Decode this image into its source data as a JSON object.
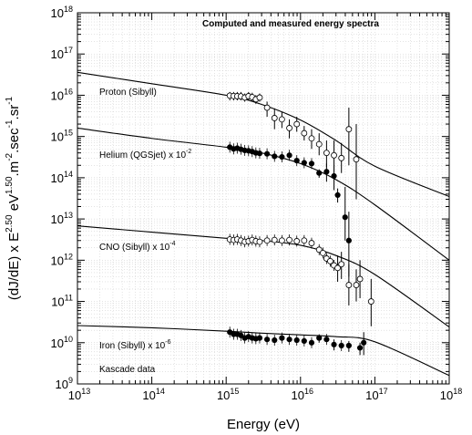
{
  "chart_data": {
    "type": "scatter",
    "title": "Computed and measured energy spectra",
    "xlabel": "Energy (eV)",
    "ylabel": {
      "prefix": "(dJ/dE) x E",
      "exp1": "2.50",
      "mid1": " eV",
      "exp2": "1.50",
      "mid2": ".m",
      "exp3": "-2",
      "mid3": ".sec",
      "exp4": "-1",
      "mid4": ".sr",
      "exp5": "-1"
    },
    "x_scale": "log",
    "y_scale": "log",
    "xlim": [
      10000000000000.0,
      1e+18
    ],
    "ylim": [
      1000000000.0,
      1e+18
    ],
    "grid": true,
    "x_ticks": [
      {
        "base": "10",
        "exp": "13"
      },
      {
        "base": "10",
        "exp": "14"
      },
      {
        "base": "10",
        "exp": "15"
      },
      {
        "base": "10",
        "exp": "16"
      },
      {
        "base": "10",
        "exp": "17"
      },
      {
        "base": "10",
        "exp": "18"
      }
    ],
    "y_ticks": [
      {
        "base": "10",
        "exp": "9"
      },
      {
        "base": "10",
        "exp": "10"
      },
      {
        "base": "10",
        "exp": "11"
      },
      {
        "base": "10",
        "exp": "12"
      },
      {
        "base": "10",
        "exp": "13"
      },
      {
        "base": "10",
        "exp": "14"
      },
      {
        "base": "10",
        "exp": "15"
      },
      {
        "base": "10",
        "exp": "16"
      },
      {
        "base": "10",
        "exp": "17"
      },
      {
        "base": "10",
        "exp": "18"
      }
    ],
    "annotations": [
      {
        "text": "Proton (Sibyll)",
        "sup": ""
      },
      {
        "text": "Helium (QGSjet)  x 10",
        "sup": "-2"
      },
      {
        "text": "CNO (Sibyll)  x 10",
        "sup": "-4"
      },
      {
        "text": "Iron (Sibyll)  x 10",
        "sup": "-6"
      },
      {
        "text": "Kascade data",
        "sup": ""
      }
    ],
    "curves": [
      {
        "x": [
          10000000000000.0,
          100000000000000.0,
          1000000000000000.0,
          3000000000000000.0,
          1e+16,
          3e+16,
          1e+17,
          1e+18
        ],
        "y": [
          3.6e+16,
          1.9e+16,
          1e+16,
          6000000000000000.0,
          2500000000000000.0,
          800000000000000.0,
          190000000000000.0,
          35000000000000.0
        ]
      },
      {
        "x": [
          10000000000000.0,
          100000000000000.0,
          1000000000000000.0,
          3000000000000000.0,
          1e+16,
          3e+16,
          1e+17,
          1e+18
        ],
        "y": [
          1600000000000000.0,
          900000000000000.0,
          550000000000000.0,
          400000000000000.0,
          220000000000000.0,
          90000000000000.0,
          22000000000000.0,
          1000000000000.0
        ]
      },
      {
        "x": [
          10000000000000.0,
          100000000000000.0,
          1000000000000000.0,
          3000000000000000.0,
          1e+16,
          3e+16,
          1e+17,
          1e+18
        ],
        "y": [
          6800000000000.0,
          4800000000000.0,
          3400000000000.0,
          3000000000000.0,
          2300000000000.0,
          1300000000000.0,
          450000000000.0,
          24000000000.0
        ]
      },
      {
        "x": [
          10000000000000.0,
          100000000000000.0,
          1000000000000000.0,
          3000000000000000.0,
          1e+16,
          3e+16,
          1e+17,
          1e+18
        ],
        "y": [
          26000000000.0,
          23000000000.0,
          19000000000.0,
          17000000000.0,
          15500000000.0,
          14000000000.0,
          10500000000.0,
          1600000000.0
        ]
      }
    ],
    "series": [
      {
        "marker": "open",
        "points": [
          {
            "x": 1120000000000000.0,
            "y": 9800000000000000.0,
            "lo": 7500000000000000.0,
            "hi": 1.2e+16
          },
          {
            "x": 1260000000000000.0,
            "y": 9600000000000000.0,
            "lo": 7500000000000000.0,
            "hi": 1.2e+16
          },
          {
            "x": 1410000000000000.0,
            "y": 9500000000000000.0,
            "lo": 7500000000000000.0,
            "hi": 1.2e+16
          },
          {
            "x": 1580000000000000.0,
            "y": 9400000000000000.0,
            "lo": 7500000000000000.0,
            "hi": 1.2e+16
          },
          {
            "x": 1780000000000000.0,
            "y": 8800000000000000.0,
            "lo": 7000000000000000.0,
            "hi": 1.1e+16
          },
          {
            "x": 2000000000000000.0,
            "y": 9500000000000000.0,
            "lo": 7500000000000000.0,
            "hi": 1.2e+16
          },
          {
            "x": 2240000000000000.0,
            "y": 9000000000000000.0,
            "lo": 7000000000000000.0,
            "hi": 1.15e+16
          },
          {
            "x": 2510000000000000.0,
            "y": 8000000000000000.0,
            "lo": 6200000000000000.0,
            "hi": 1e+16
          },
          {
            "x": 2820000000000000.0,
            "y": 8800000000000000.0,
            "lo": 7000000000000000.0,
            "hi": 1.1e+16
          },
          {
            "x": 3550000000000000.0,
            "y": 5000000000000000.0,
            "lo": 3000000000000000.0,
            "hi": 7000000000000000.0
          },
          {
            "x": 4470000000000000.0,
            "y": 2800000000000000.0,
            "lo": 1500000000000000.0,
            "hi": 4800000000000000.0
          },
          {
            "x": 5620000000000000.0,
            "y": 2600000000000000.0,
            "lo": 1600000000000000.0,
            "hi": 4000000000000000.0
          },
          {
            "x": 7080000000000000.0,
            "y": 1600000000000000.0,
            "lo": 900000000000000.0,
            "hi": 2600000000000000.0
          },
          {
            "x": 8910000000000000.0,
            "y": 2000000000000000.0,
            "lo": 1300000000000000.0,
            "hi": 3000000000000000.0
          },
          {
            "x": 1.12e+16,
            "y": 1200000000000000.0,
            "lo": 800000000000000.0,
            "hi": 1800000000000000.0
          },
          {
            "x": 1.41e+16,
            "y": 900000000000000.0,
            "lo": 500000000000000.0,
            "hi": 1500000000000000.0
          },
          {
            "x": 1.78e+16,
            "y": 650000000000000.0,
            "lo": 350000000000000.0,
            "hi": 1200000000000000.0
          },
          {
            "x": 2.24e+16,
            "y": 400000000000000.0,
            "lo": 180000000000000.0,
            "hi": 800000000000000.0
          },
          {
            "x": 2.82e+16,
            "y": 350000000000000.0,
            "lo": 140000000000000.0,
            "hi": 800000000000000.0
          },
          {
            "x": 3.55e+16,
            "y": 300000000000000.0,
            "lo": 130000000000000.0,
            "hi": 700000000000000.0
          },
          {
            "x": 4.47e+16,
            "y": 1500000000000000.0,
            "lo": 200000000000000.0,
            "hi": 5000000000000000.0
          },
          {
            "x": 5.62e+16,
            "y": 280000000000000.0,
            "lo": 30000000000000.0,
            "hi": 2000000000000000.0
          }
        ]
      },
      {
        "marker": "filled",
        "points": [
          {
            "x": 1120000000000000.0,
            "y": 550000000000000.0
          },
          {
            "x": 1260000000000000.0,
            "y": 500000000000000.0
          },
          {
            "x": 1410000000000000.0,
            "y": 520000000000000.0
          },
          {
            "x": 1580000000000000.0,
            "y": 490000000000000.0
          },
          {
            "x": 1780000000000000.0,
            "y": 460000000000000.0
          },
          {
            "x": 2000000000000000.0,
            "y": 450000000000000.0
          },
          {
            "x": 2240000000000000.0,
            "y": 430000000000000.0
          },
          {
            "x": 2510000000000000.0,
            "y": 400000000000000.0
          },
          {
            "x": 2820000000000000.0,
            "y": 390000000000000.0
          },
          {
            "x": 3550000000000000.0,
            "y": 380000000000000.0
          },
          {
            "x": 4470000000000000.0,
            "y": 330000000000000.0
          },
          {
            "x": 5620000000000000.0,
            "y": 320000000000000.0
          },
          {
            "x": 7080000000000000.0,
            "y": 350000000000000.0
          },
          {
            "x": 8910000000000000.0,
            "y": 260000000000000.0
          },
          {
            "x": 1.12e+16,
            "y": 230000000000000.0
          },
          {
            "x": 1.41e+16,
            "y": 220000000000000.0
          },
          {
            "x": 1.78e+16,
            "y": 130000000000000.0,
            "lo": 100000000000000.0,
            "hi": 160000000000000.0
          },
          {
            "x": 2.24e+16,
            "y": 140000000000000.0,
            "lo": 80000000000000.0,
            "hi": 220000000000000.0
          },
          {
            "x": 2.82e+16,
            "y": 110000000000000.0,
            "lo": 50000000000000.0,
            "hi": 200000000000000.0
          },
          {
            "x": 3.16e+16,
            "y": 38000000000000.0,
            "lo": 25000000000000.0,
            "hi": 55000000000000.0
          },
          {
            "x": 3.98e+16,
            "y": 11000000000000.0,
            "lo": 3000000000000.0,
            "hi": 60000000000000.0
          },
          {
            "x": 4.47e+16,
            "y": 3000000000000.0,
            "lo": 400000000000.0,
            "hi": 15000000000000.0
          }
        ]
      },
      {
        "marker": "open",
        "points": [
          {
            "x": 1120000000000000.0,
            "y": 3200000000000.0
          },
          {
            "x": 1260000000000000.0,
            "y": 3100000000000.0
          },
          {
            "x": 1410000000000000.0,
            "y": 3200000000000.0
          },
          {
            "x": 1580000000000000.0,
            "y": 3000000000000.0
          },
          {
            "x": 1780000000000000.0,
            "y": 2800000000000.0
          },
          {
            "x": 2000000000000000.0,
            "y": 2900000000000.0
          },
          {
            "x": 2240000000000000.0,
            "y": 3100000000000.0
          },
          {
            "x": 2510000000000000.0,
            "y": 2900000000000.0
          },
          {
            "x": 2820000000000000.0,
            "y": 2800000000000.0
          },
          {
            "x": 3550000000000000.0,
            "y": 3000000000000.0
          },
          {
            "x": 4470000000000000.0,
            "y": 3100000000000.0
          },
          {
            "x": 5620000000000000.0,
            "y": 3000000000000.0
          },
          {
            "x": 7080000000000000.0,
            "y": 3100000000000.0
          },
          {
            "x": 8910000000000000.0,
            "y": 2900000000000.0
          },
          {
            "x": 1.12e+16,
            "y": 3000000000000.0
          },
          {
            "x": 1.41e+16,
            "y": 2600000000000.0
          },
          {
            "x": 1.78e+16,
            "y": 1800000000000.0
          },
          {
            "x": 2e+16,
            "y": 1500000000000.0
          },
          {
            "x": 2.24e+16,
            "y": 1100000000000.0
          },
          {
            "x": 2.51e+16,
            "y": 950000000000.0
          },
          {
            "x": 2.82e+16,
            "y": 750000000000.0
          },
          {
            "x": 3.16e+16,
            "y": 650000000000.0,
            "lo": 300000000000.0,
            "hi": 1300000000000.0
          },
          {
            "x": 3.55e+16,
            "y": 800000000000.0,
            "lo": 350000000000.0,
            "hi": 1600000000000.0
          },
          {
            "x": 4.47e+16,
            "y": 250000000000.0,
            "lo": 80000000000.0,
            "hi": 800000000000.0
          },
          {
            "x": 5.62e+16,
            "y": 250000000000.0,
            "lo": 100000000000.0,
            "hi": 600000000000.0
          },
          {
            "x": 6.31e+16,
            "y": 350000000000.0,
            "lo": 120000000000.0,
            "hi": 1000000000000.0
          },
          {
            "x": 8.91e+16,
            "y": 100000000000.0,
            "lo": 25000000000.0,
            "hi": 350000000000.0
          }
        ]
      },
      {
        "marker": "filled",
        "points": [
          {
            "x": 1120000000000000.0,
            "y": 18000000000.0
          },
          {
            "x": 1260000000000000.0,
            "y": 16000000000.0
          },
          {
            "x": 1410000000000000.0,
            "y": 16000000000.0
          },
          {
            "x": 1580000000000000.0,
            "y": 15000000000.0
          },
          {
            "x": 1780000000000000.0,
            "y": 13000000000.0
          },
          {
            "x": 2000000000000000.0,
            "y": 14000000000.0
          },
          {
            "x": 2240000000000000.0,
            "y": 13000000000.0
          },
          {
            "x": 2510000000000000.0,
            "y": 12500000000.0
          },
          {
            "x": 2820000000000000.0,
            "y": 13000000000.0
          },
          {
            "x": 3550000000000000.0,
            "y": 12000000000.0
          },
          {
            "x": 4470000000000000.0,
            "y": 11500000000.0
          },
          {
            "x": 5620000000000000.0,
            "y": 13000000000.0
          },
          {
            "x": 7080000000000000.0,
            "y": 12000000000.0
          },
          {
            "x": 8910000000000000.0,
            "y": 11500000000.0
          },
          {
            "x": 1.12e+16,
            "y": 11000000000.0
          },
          {
            "x": 1.41e+16,
            "y": 10000000000.0
          },
          {
            "x": 1.78e+16,
            "y": 13000000000.0,
            "lo": 10000000000.0,
            "hi": 16000000000.0
          },
          {
            "x": 2.24e+16,
            "y": 12000000000.0
          },
          {
            "x": 2.82e+16,
            "y": 9000000000.0,
            "lo": 6500000000.0,
            "hi": 12000000000.0
          },
          {
            "x": 3.55e+16,
            "y": 8500000000.0
          },
          {
            "x": 4.47e+16,
            "y": 8500000000.0,
            "lo": 6000000000.0,
            "hi": 11000000000.0
          },
          {
            "x": 6.31e+16,
            "y": 7500000000.0,
            "lo": 5000000000.0,
            "hi": 10000000000.0
          },
          {
            "x": 7.08e+16,
            "y": 10000000000.0,
            "lo": 5000000000.0,
            "hi": 18000000000.0
          }
        ]
      }
    ]
  }
}
